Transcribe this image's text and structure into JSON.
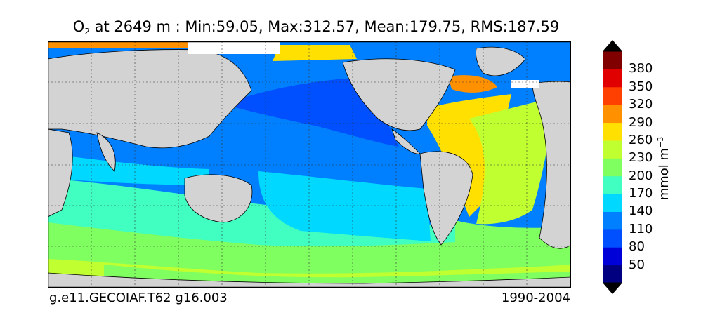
{
  "title": {
    "variable": "O",
    "subscript": "2",
    "text": " at 2649 m : Min:59.05, Max:312.57, Mean:179.75, RMS:187.59"
  },
  "footer": {
    "case": "g.e11.GECOIAF.T62 g16.003",
    "period": "1990-2004"
  },
  "colorbar": {
    "unit_main": "mmol m",
    "unit_exp": "−3",
    "ticks": [
      "50",
      "80",
      "110",
      "140",
      "170",
      "200",
      "230",
      "260",
      "290",
      "320",
      "350",
      "380"
    ],
    "colors": [
      "#000080",
      "#0000d8",
      "#0050ff",
      "#0080ff",
      "#00d8ff",
      "#40ffc0",
      "#80ff60",
      "#c0ff30",
      "#ffe000",
      "#ff9000",
      "#ff4000",
      "#e00000",
      "#800000"
    ]
  },
  "map": {
    "land_color": "#d3d3d3",
    "missing_color": "#ffffff"
  }
}
